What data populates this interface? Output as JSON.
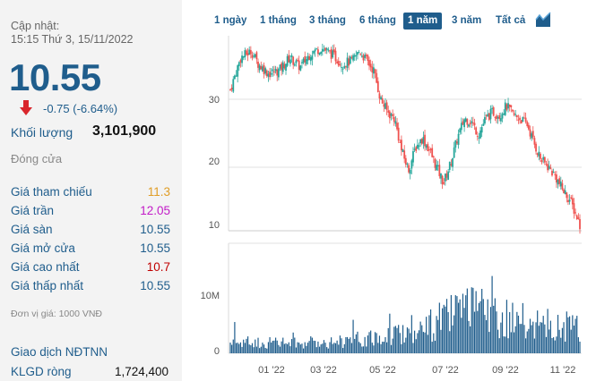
{
  "quote": {
    "updated_label": "Cập nhật:",
    "updated_time": "15:15 Thứ 3, 15/11/2022",
    "price": "10.55",
    "change": "-0.75 (-6.64%)",
    "volume_label": "Khối lượng",
    "volume_value": "3,101,900",
    "close_label": "Đóng cửa",
    "unit_note": "Đơn vị giá: 1000 VNĐ"
  },
  "stats": [
    {
      "label": "Giá tham chiếu",
      "value": "11.3"
    },
    {
      "label": "Giá trần",
      "value": "12.05"
    },
    {
      "label": "Giá sàn",
      "value": "10.55"
    },
    {
      "label": "Giá mở cửa",
      "value": "10.55"
    },
    {
      "label": "Giá cao nhất",
      "value": "10.7"
    },
    {
      "label": "Giá thấp nhất",
      "value": "10.55"
    }
  ],
  "foreign": {
    "title": "Giao dịch NĐTNN",
    "net_label": "KLGD ròng",
    "net_value": "1,724,400"
  },
  "range_tabs": [
    "1 ngày",
    "1 tháng",
    "3 tháng",
    "6 tháng",
    "1 năm",
    "3 năm",
    "Tất cả"
  ],
  "active_range": "1 năm",
  "icons": {
    "down": "down-arrow-icon",
    "chart": "area-chart-icon"
  },
  "colors": {
    "up": "#26a69a",
    "down": "#ef5350",
    "accent": "#1f5d8c",
    "volume": "#1f5d8c"
  },
  "chart_data": {
    "type": "candlestick",
    "price_ticks": [
      "10",
      "20",
      "30"
    ],
    "volume_ticks": [
      "0",
      "10M"
    ],
    "x_labels": [
      "01 '22",
      "03 '22",
      "05 '22",
      "07 '22",
      "09 '22",
      "11 '22"
    ],
    "close_path": [
      {
        "t": 0.0,
        "v": 31.5
      },
      {
        "t": 0.03,
        "v": 36.5
      },
      {
        "t": 0.06,
        "v": 37.5
      },
      {
        "t": 0.08,
        "v": 35.5
      },
      {
        "t": 0.11,
        "v": 34.0
      },
      {
        "t": 0.14,
        "v": 34.5
      },
      {
        "t": 0.17,
        "v": 36.5
      },
      {
        "t": 0.2,
        "v": 35.0
      },
      {
        "t": 0.23,
        "v": 37.2
      },
      {
        "t": 0.26,
        "v": 38.0
      },
      {
        "t": 0.29,
        "v": 37.0
      },
      {
        "t": 0.32,
        "v": 35.5
      },
      {
        "t": 0.35,
        "v": 36.0
      },
      {
        "t": 0.37,
        "v": 37.5
      },
      {
        "t": 0.39,
        "v": 36.0
      },
      {
        "t": 0.41,
        "v": 34.5
      },
      {
        "t": 0.43,
        "v": 30.0
      },
      {
        "t": 0.45,
        "v": 28.0
      },
      {
        "t": 0.47,
        "v": 27.0
      },
      {
        "t": 0.49,
        "v": 22.0
      },
      {
        "t": 0.51,
        "v": 19.0
      },
      {
        "t": 0.53,
        "v": 22.5
      },
      {
        "t": 0.55,
        "v": 24.0
      },
      {
        "t": 0.57,
        "v": 22.0
      },
      {
        "t": 0.59,
        "v": 19.5
      },
      {
        "t": 0.61,
        "v": 17.0
      },
      {
        "t": 0.63,
        "v": 20.0
      },
      {
        "t": 0.65,
        "v": 24.0
      },
      {
        "t": 0.67,
        "v": 27.0
      },
      {
        "t": 0.69,
        "v": 26.5
      },
      {
        "t": 0.71,
        "v": 24.5
      },
      {
        "t": 0.73,
        "v": 27.0
      },
      {
        "t": 0.75,
        "v": 28.0
      },
      {
        "t": 0.77,
        "v": 27.5
      },
      {
        "t": 0.79,
        "v": 29.0
      },
      {
        "t": 0.81,
        "v": 27.5
      },
      {
        "t": 0.83,
        "v": 27.0
      },
      {
        "t": 0.85,
        "v": 26.0
      },
      {
        "t": 0.87,
        "v": 23.0
      },
      {
        "t": 0.89,
        "v": 20.5
      },
      {
        "t": 0.91,
        "v": 19.5
      },
      {
        "t": 0.93,
        "v": 18.0
      },
      {
        "t": 0.95,
        "v": 16.0
      },
      {
        "t": 0.97,
        "v": 14.5
      },
      {
        "t": 0.99,
        "v": 12.0
      },
      {
        "t": 1.0,
        "v": 10.55
      }
    ],
    "volume_profile": [
      {
        "t": 0.0,
        "v": 2.0
      },
      {
        "t": 0.2,
        "v": 1.8
      },
      {
        "t": 0.4,
        "v": 2.5
      },
      {
        "t": 0.47,
        "v": 3.5
      },
      {
        "t": 0.55,
        "v": 4.0
      },
      {
        "t": 0.62,
        "v": 6.5
      },
      {
        "t": 0.7,
        "v": 7.5
      },
      {
        "t": 0.8,
        "v": 6.0
      },
      {
        "t": 0.88,
        "v": 5.0
      },
      {
        "t": 1.0,
        "v": 4.5
      }
    ]
  }
}
